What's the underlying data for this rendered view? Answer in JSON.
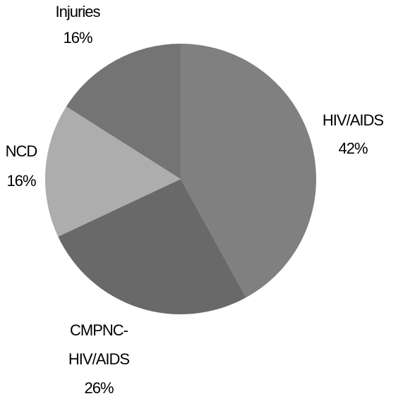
{
  "chart_data": {
    "type": "pie",
    "categories": [
      "HIV/AIDS",
      "CMPNC-HIV/AIDS",
      "NCD",
      "Injuries"
    ],
    "values": [
      42,
      26,
      16,
      16
    ],
    "value_labels": [
      "42%",
      "26%",
      "16%",
      "16%"
    ],
    "colors": [
      "#808080",
      "#696969",
      "#adadad",
      "#747474"
    ]
  }
}
